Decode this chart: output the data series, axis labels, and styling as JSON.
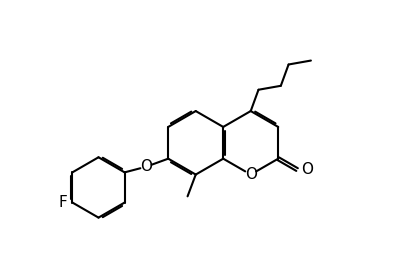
{
  "background": "#ffffff",
  "lc": "#000000",
  "lw": 1.5,
  "dbo": 0.038,
  "fs": 11,
  "fig_w": 3.96,
  "fig_h": 2.72,
  "dpi": 100,
  "xlim": [
    -0.5,
    8.2
  ],
  "ylim": [
    -0.3,
    5.2
  ]
}
